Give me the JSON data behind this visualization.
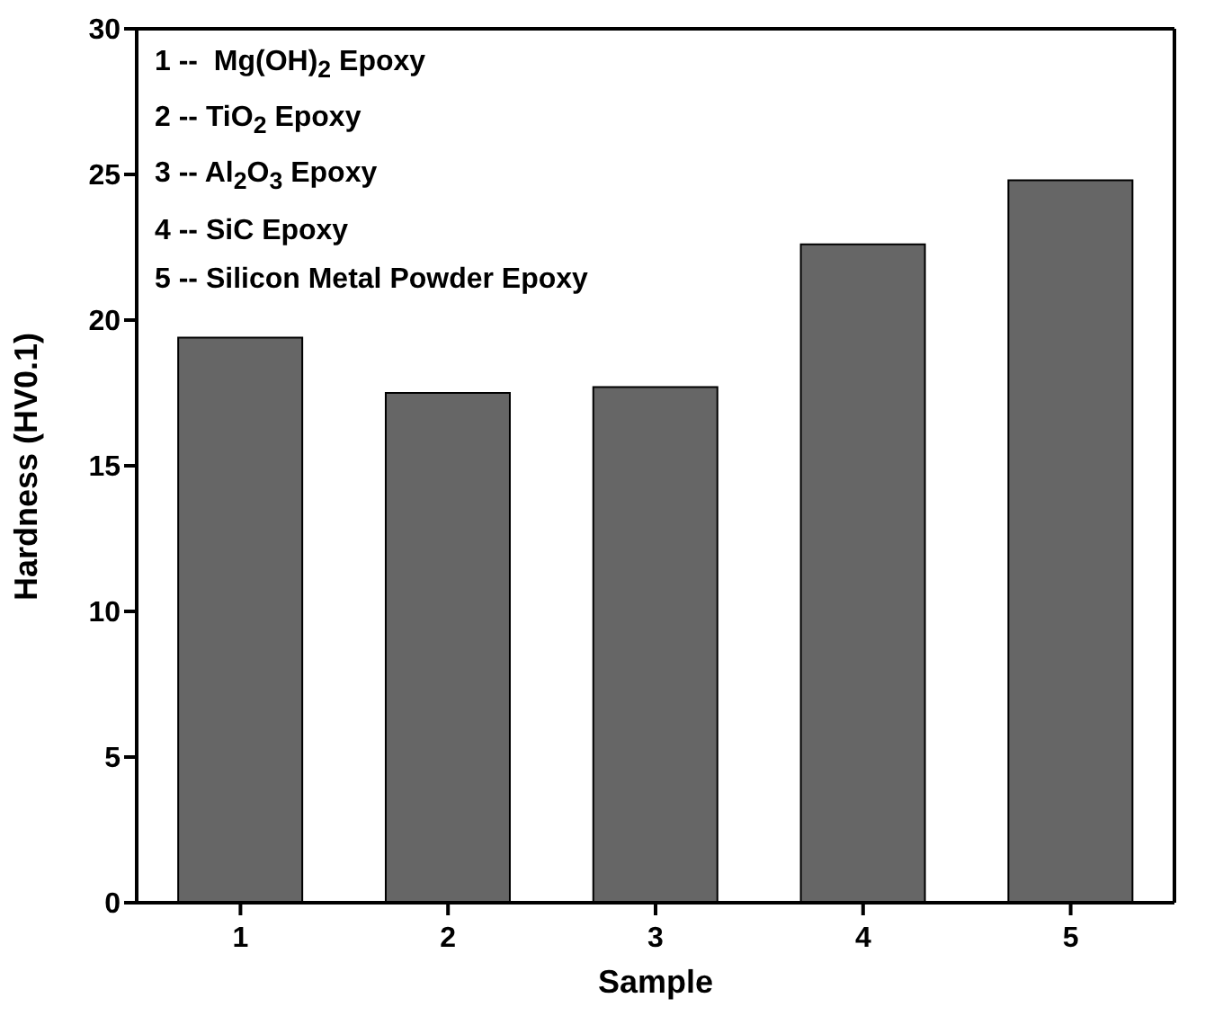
{
  "chart_data": {
    "type": "bar",
    "xlabel": "Sample",
    "ylabel": "Hardness (HV0.1)",
    "categories": [
      "1",
      "2",
      "3",
      "4",
      "5"
    ],
    "values": [
      19.4,
      17.5,
      17.7,
      22.6,
      24.8
    ],
    "color": "#666666",
    "ylim": [
      0,
      30
    ],
    "yticks": [
      0,
      5,
      10,
      15,
      20,
      25,
      30
    ],
    "grid": false,
    "annotations": [
      "1 --  Mg(OH)$_{2}$ Epoxy",
      "2 -- TiO$_{2}$ Epoxy",
      "3 -- Al$_{2}$O$_{3}$ Epoxy",
      "4 -- SiC Epoxy",
      "5 -- Silicon Metal Powder Epoxy"
    ]
  }
}
